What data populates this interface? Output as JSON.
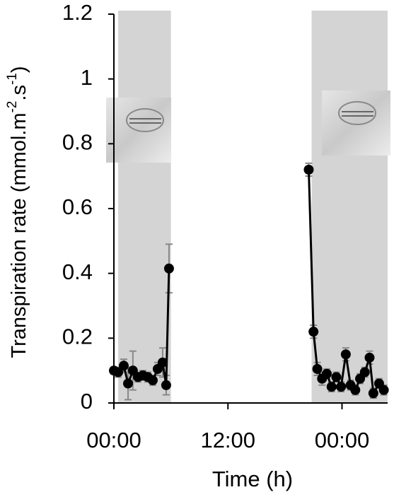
{
  "chart_data": {
    "type": "line",
    "x_label": "Time (h)",
    "y_label_parts": [
      "Transpiration rate (mmol.m",
      "-2",
      ".s",
      "-1",
      ")"
    ],
    "xlim": [
      0,
      28.8
    ],
    "xticks": [
      {
        "value": 0,
        "label": "00:00"
      },
      {
        "value": 12,
        "label": "12:00"
      },
      {
        "value": 24,
        "label": "00:00"
      }
    ],
    "ylim": [
      0,
      1.2
    ],
    "yticks": [
      0,
      0.2,
      0.4,
      0.6,
      0.8,
      1,
      1.2
    ],
    "shaded_regions": [
      [
        0.45,
        6.0
      ],
      [
        20.8,
        28.8
      ]
    ],
    "shade_color": "#d4d4d4",
    "series": [
      {
        "color": "#000000",
        "error_color": "#888888",
        "x": [
          0,
          0.45,
          1.04,
          1.49,
          2.0,
          2.53,
          3.05,
          3.57,
          4.09,
          4.61,
          5.13,
          5.5,
          5.8,
          12,
          20.5,
          21.0,
          21.4,
          21.9,
          22.4,
          22.9,
          23.4,
          23.9,
          24.4,
          24.9,
          25.4,
          25.9,
          26.4,
          26.9,
          27.3,
          27.9,
          28.4
        ],
        "values": [
          0.1,
          0.095,
          0.115,
          0.06,
          0.1,
          0.08,
          0.085,
          0.08,
          0.07,
          0.105,
          0.125,
          0.055,
          0.415,
          null,
          0.72,
          0.22,
          0.105,
          0.075,
          0.09,
          0.05,
          0.08,
          0.05,
          0.15,
          0.055,
          0.04,
          0.075,
          0.095,
          0.14,
          0.03,
          0.06,
          0.04
        ],
        "errors": [
          0.01,
          0.015,
          0.02,
          0.05,
          0.06,
          0.015,
          0.015,
          0.015,
          0.015,
          0.02,
          0.045,
          0.03,
          0.075,
          null,
          0.02,
          0.02,
          0.02,
          0.02,
          0.015,
          0.015,
          0.015,
          0.015,
          0.02,
          0.015,
          0.015,
          0.015,
          0.015,
          0.02,
          0.015,
          0.015,
          0.015
        ]
      }
    ]
  }
}
